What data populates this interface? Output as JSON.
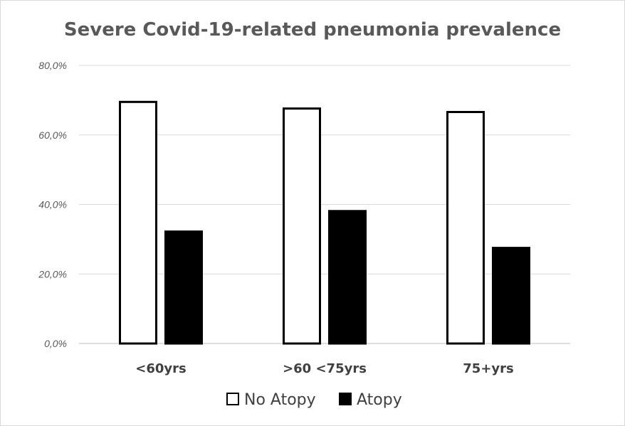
{
  "chart_data": {
    "type": "bar",
    "title": "Severe Covid-19-related pneumonia prevalence",
    "categories": [
      "<60yrs",
      ">60 <75yrs",
      "75+yrs"
    ],
    "series": [
      {
        "name": "No Atopy",
        "values": [
          69.5,
          67.6,
          66.6
        ],
        "fill": "#ffffff",
        "stroke": "#000000"
      },
      {
        "name": "Atopy",
        "values": [
          32.2,
          38.1,
          27.5
        ],
        "fill": "#000000",
        "stroke": "#000000"
      }
    ],
    "y_ticks": [
      "0,0%",
      "20,0%",
      "40,0%",
      "60,0%",
      "80,0%"
    ],
    "y_tick_values": [
      0,
      20,
      40,
      60,
      80
    ],
    "ylim": [
      0,
      80
    ],
    "xlabel": "",
    "ylabel": "",
    "grid": true,
    "legend_position": "bottom"
  }
}
